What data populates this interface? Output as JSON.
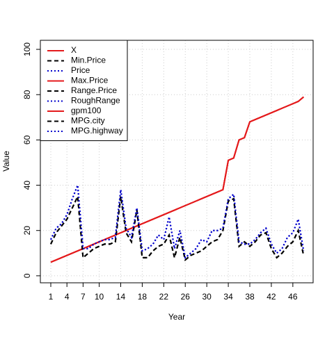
{
  "chart_data": {
    "type": "line",
    "xlabel": "Year",
    "ylabel": "Value",
    "x": [
      1,
      2,
      3,
      4,
      5,
      6,
      7,
      8,
      9,
      10,
      11,
      12,
      13,
      14,
      15,
      16,
      17,
      18,
      19,
      20,
      21,
      22,
      23,
      24,
      25,
      26,
      27,
      28,
      29,
      30,
      31,
      32,
      33,
      34,
      35,
      36,
      37,
      38,
      39,
      40,
      41,
      42,
      43,
      44,
      45,
      46,
      47,
      48
    ],
    "series": [
      {
        "name": "X",
        "color": "#e41a1c",
        "dash": "solid",
        "values": [
          6,
          7,
          8,
          9,
          10,
          11,
          12,
          13,
          14,
          15,
          16,
          17,
          18,
          19,
          20,
          21,
          22,
          23,
          24,
          25,
          26,
          27,
          28,
          29,
          30,
          31,
          32,
          33,
          34,
          35,
          36,
          37,
          38,
          51,
          52,
          60,
          61,
          68,
          69,
          70,
          71,
          72,
          73,
          74,
          75,
          76,
          77,
          79
        ]
      },
      {
        "name": "Min.Price",
        "color": "#000000",
        "dash": "dashed",
        "values": [
          14,
          19,
          22,
          25,
          30,
          35,
          8,
          10,
          12,
          13,
          14,
          14,
          15,
          35,
          19,
          15,
          29,
          8,
          8,
          11,
          13,
          14,
          18,
          8,
          17,
          7,
          9,
          10,
          11,
          13,
          15,
          16,
          20,
          33,
          34,
          13,
          15,
          13,
          15,
          18,
          19,
          12,
          8,
          10,
          13,
          15,
          20,
          9
        ]
      },
      {
        "name": "Price",
        "color": "#0000cc",
        "dash": "dotted",
        "values": [
          16,
          21,
          23,
          27,
          34,
          40,
          12,
          12,
          14,
          15,
          16,
          16,
          17,
          38,
          21,
          17,
          30,
          11,
          12,
          14,
          18,
          16,
          26,
          12,
          20,
          8,
          10,
          12,
          16,
          15,
          20,
          20,
          21,
          34,
          36,
          15,
          14,
          14,
          16,
          19,
          21,
          14,
          10,
          12,
          17,
          19,
          25,
          11
        ]
      },
      {
        "name": "Max.Price",
        "color": "#e41a1c",
        "dash": "solid",
        "values": [
          6,
          7,
          8,
          9,
          10,
          11,
          12,
          13,
          14,
          15,
          16,
          17,
          18,
          19,
          20,
          21,
          22,
          23,
          24,
          25,
          26,
          27,
          28,
          29,
          30,
          31,
          32,
          33,
          34,
          35,
          36,
          37,
          38,
          51,
          52,
          60,
          61,
          68,
          69,
          70,
          71,
          72,
          73,
          74,
          75,
          76,
          77,
          79
        ]
      },
      {
        "name": "Range.Price",
        "color": "#000000",
        "dash": "dashed",
        "values": [
          14,
          19,
          22,
          25,
          30,
          35,
          8,
          10,
          12,
          13,
          14,
          14,
          15,
          35,
          19,
          15,
          29,
          8,
          8,
          11,
          13,
          14,
          18,
          8,
          17,
          7,
          9,
          10,
          11,
          13,
          15,
          16,
          20,
          33,
          34,
          13,
          15,
          13,
          15,
          18,
          19,
          12,
          8,
          10,
          13,
          15,
          20,
          9
        ]
      },
      {
        "name": "RoughRange",
        "color": "#0000cc",
        "dash": "dotted",
        "values": [
          16,
          21,
          23,
          27,
          34,
          40,
          12,
          12,
          14,
          15,
          16,
          16,
          17,
          38,
          21,
          17,
          30,
          11,
          12,
          14,
          18,
          16,
          26,
          12,
          20,
          8,
          10,
          12,
          16,
          15,
          20,
          20,
          21,
          34,
          36,
          15,
          14,
          14,
          16,
          19,
          21,
          14,
          10,
          12,
          17,
          19,
          25,
          11
        ]
      },
      {
        "name": "gpm100",
        "color": "#e41a1c",
        "dash": "solid",
        "values": [
          6,
          7,
          8,
          9,
          10,
          11,
          12,
          13,
          14,
          15,
          16,
          17,
          18,
          19,
          20,
          21,
          22,
          23,
          24,
          25,
          26,
          27,
          28,
          29,
          30,
          31,
          32,
          33,
          34,
          35,
          36,
          37,
          38,
          51,
          52,
          60,
          61,
          68,
          69,
          70,
          71,
          72,
          73,
          74,
          75,
          76,
          77,
          79
        ]
      },
      {
        "name": "MPG.city",
        "color": "#000000",
        "dash": "dashed",
        "values": [
          14,
          19,
          22,
          25,
          30,
          35,
          8,
          10,
          12,
          13,
          14,
          14,
          15,
          35,
          19,
          15,
          29,
          8,
          8,
          11,
          13,
          14,
          18,
          8,
          17,
          7,
          9,
          10,
          11,
          13,
          15,
          16,
          20,
          33,
          34,
          13,
          15,
          13,
          15,
          18,
          19,
          12,
          8,
          10,
          13,
          15,
          20,
          9
        ]
      },
      {
        "name": "MPG.highway",
        "color": "#0000cc",
        "dash": "dotted",
        "values": [
          16,
          21,
          23,
          27,
          34,
          40,
          12,
          12,
          14,
          15,
          16,
          16,
          17,
          38,
          21,
          17,
          30,
          11,
          12,
          14,
          18,
          16,
          26,
          12,
          20,
          8,
          10,
          12,
          16,
          15,
          20,
          20,
          21,
          34,
          36,
          15,
          14,
          14,
          16,
          19,
          21,
          14,
          10,
          12,
          17,
          19,
          25,
          11
        ]
      }
    ],
    "xlim": [
      -0.94,
      49.77
    ],
    "xticks": [
      1,
      4,
      7,
      10,
      14,
      18,
      22,
      26,
      30,
      34,
      38,
      42,
      46
    ],
    "ylim": [
      -3.1,
      104
    ],
    "yticks": [
      0,
      20,
      40,
      60,
      80,
      100
    ],
    "grid": true,
    "legend": "top-left"
  }
}
